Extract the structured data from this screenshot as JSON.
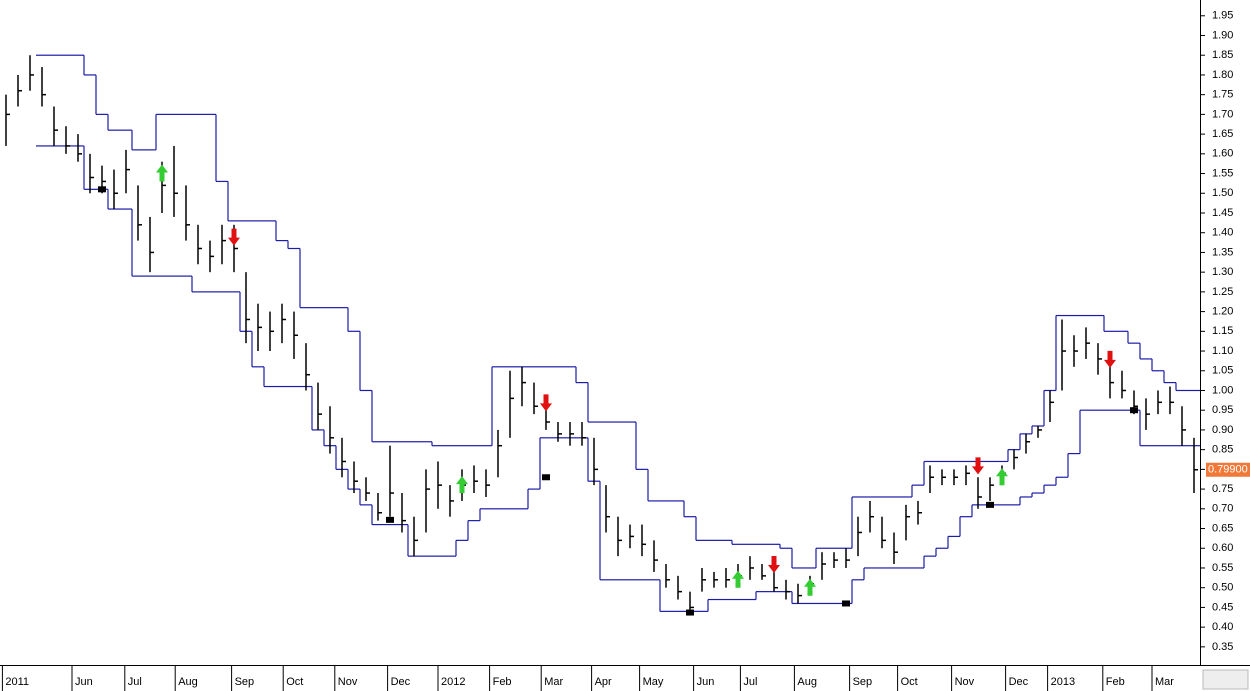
{
  "chart_data": {
    "type": "ohlc",
    "xlim": [
      -0.5,
      99.5
    ],
    "ylim": [
      0.304,
      1.99
    ],
    "xticks": [
      {
        "value": -0.3,
        "label": "2011"
      },
      {
        "value": 5.5,
        "label": "Jun"
      },
      {
        "value": 9.9,
        "label": "Jul"
      },
      {
        "value": 14.1,
        "label": "Aug"
      },
      {
        "value": 18.8,
        "label": "Sep"
      },
      {
        "value": 23.1,
        "label": "Oct"
      },
      {
        "value": 27.4,
        "label": "Nov"
      },
      {
        "value": 31.8,
        "label": "Dec"
      },
      {
        "value": 36.0,
        "label": "2012"
      },
      {
        "value": 40.3,
        "label": "Feb"
      },
      {
        "value": 44.6,
        "label": "Mar"
      },
      {
        "value": 48.8,
        "label": "Apr"
      },
      {
        "value": 52.8,
        "label": "May"
      },
      {
        "value": 57.3,
        "label": "Jun"
      },
      {
        "value": 61.2,
        "label": "Jul"
      },
      {
        "value": 65.7,
        "label": "Aug"
      },
      {
        "value": 70.3,
        "label": "Sep"
      },
      {
        "value": 74.3,
        "label": "Oct"
      },
      {
        "value": 78.8,
        "label": "Nov"
      },
      {
        "value": 83.3,
        "label": "Dec"
      },
      {
        "value": 86.8,
        "label": "2013"
      },
      {
        "value": 91.4,
        "label": "Feb"
      },
      {
        "value": 95.5,
        "label": "Mar"
      }
    ],
    "yticks": [
      {
        "value": 0.35,
        "label": "0.35"
      },
      {
        "value": 0.4,
        "label": "0.40"
      },
      {
        "value": 0.45,
        "label": "0.45"
      },
      {
        "value": 0.5,
        "label": "0.50"
      },
      {
        "value": 0.55,
        "label": "0.55"
      },
      {
        "value": 0.6,
        "label": "0.60"
      },
      {
        "value": 0.65,
        "label": "0.65"
      },
      {
        "value": 0.7,
        "label": "0.70"
      },
      {
        "value": 0.75,
        "label": "0.75"
      },
      {
        "value": 0.8,
        "label": "0.80"
      },
      {
        "value": 0.85,
        "label": "0.85"
      },
      {
        "value": 0.9,
        "label": "0.90"
      },
      {
        "value": 0.95,
        "label": "0.95"
      },
      {
        "value": 1.0,
        "label": "1.00"
      },
      {
        "value": 1.05,
        "label": "1.05"
      },
      {
        "value": 1.1,
        "label": "1.10"
      },
      {
        "value": 1.15,
        "label": "1.15"
      },
      {
        "value": 1.2,
        "label": "1.20"
      },
      {
        "value": 1.25,
        "label": "1.25"
      },
      {
        "value": 1.3,
        "label": "1.30"
      },
      {
        "value": 1.35,
        "label": "1.35"
      },
      {
        "value": 1.4,
        "label": "1.40"
      },
      {
        "value": 1.45,
        "label": "1.45"
      },
      {
        "value": 1.5,
        "label": "1.50"
      },
      {
        "value": 1.55,
        "label": "1.55"
      },
      {
        "value": 1.6,
        "label": "1.60"
      },
      {
        "value": 1.65,
        "label": "1.65"
      },
      {
        "value": 1.7,
        "label": "1.70"
      },
      {
        "value": 1.75,
        "label": "1.75"
      },
      {
        "value": 1.8,
        "label": "1.80"
      },
      {
        "value": 1.85,
        "label": "1.85"
      },
      {
        "value": 1.9,
        "label": "1.90"
      },
      {
        "value": 1.95,
        "label": "1.95"
      }
    ],
    "bar_color": "#000000",
    "high": [
      1.75,
      1.8,
      1.85,
      1.82,
      1.72,
      1.67,
      1.65,
      1.6,
      1.57,
      1.56,
      1.61,
      1.52,
      1.44,
      1.58,
      1.62,
      1.52,
      1.42,
      1.38,
      1.42,
      1.42,
      1.3,
      1.22,
      1.2,
      1.22,
      1.2,
      1.12,
      1.02,
      0.96,
      0.88,
      0.82,
      0.78,
      0.74,
      0.86,
      0.74,
      0.68,
      0.8,
      0.82,
      0.76,
      0.8,
      0.81,
      0.8,
      0.9,
      1.05,
      1.06,
      1.02,
      0.97,
      0.92,
      0.92,
      0.92,
      0.88,
      0.76,
      0.68,
      0.66,
      0.66,
      0.62,
      0.56,
      0.53,
      0.49,
      0.55,
      0.54,
      0.55,
      0.56,
      0.58,
      0.56,
      0.54,
      0.52,
      0.51,
      0.53,
      0.59,
      0.59,
      0.6,
      0.68,
      0.72,
      0.68,
      0.64,
      0.71,
      0.72,
      0.81,
      0.8,
      0.8,
      0.81,
      0.78,
      0.78,
      0.81,
      0.85,
      0.89,
      0.91,
      1.0,
      1.18,
      1.14,
      1.16,
      1.12,
      1.06,
      1.05,
      1.0,
      0.98,
      1.0,
      1.01,
      0.96,
      0.88
    ],
    "low": [
      1.62,
      1.72,
      1.76,
      1.72,
      1.62,
      1.6,
      1.58,
      1.5,
      1.5,
      1.46,
      1.5,
      1.38,
      1.3,
      1.45,
      1.44,
      1.38,
      1.32,
      1.3,
      1.32,
      1.3,
      1.12,
      1.1,
      1.1,
      1.12,
      1.08,
      1.0,
      0.9,
      0.84,
      0.78,
      0.74,
      0.72,
      0.67,
      0.68,
      0.64,
      0.58,
      0.64,
      0.7,
      0.68,
      0.72,
      0.74,
      0.73,
      0.78,
      0.88,
      0.96,
      0.94,
      0.9,
      0.87,
      0.86,
      0.86,
      0.76,
      0.64,
      0.58,
      0.6,
      0.58,
      0.54,
      0.5,
      0.47,
      0.43,
      0.49,
      0.5,
      0.5,
      0.51,
      0.52,
      0.52,
      0.49,
      0.47,
      0.46,
      0.48,
      0.52,
      0.55,
      0.55,
      0.58,
      0.64,
      0.6,
      0.56,
      0.62,
      0.66,
      0.74,
      0.76,
      0.76,
      0.76,
      0.7,
      0.72,
      0.76,
      0.8,
      0.84,
      0.88,
      0.92,
      1.0,
      1.06,
      1.08,
      1.04,
      0.98,
      0.98,
      0.94,
      0.9,
      0.94,
      0.94,
      0.86,
      0.74
    ],
    "close": [
      1.7,
      1.76,
      1.8,
      1.75,
      1.66,
      1.62,
      1.6,
      1.54,
      1.53,
      1.5,
      1.56,
      1.42,
      1.35,
      1.52,
      1.5,
      1.42,
      1.36,
      1.34,
      1.38,
      1.36,
      1.18,
      1.16,
      1.15,
      1.18,
      1.14,
      1.04,
      0.94,
      0.88,
      0.82,
      0.77,
      0.74,
      0.69,
      0.74,
      0.67,
      0.62,
      0.75,
      0.76,
      0.72,
      0.76,
      0.77,
      0.76,
      0.86,
      0.98,
      1.02,
      0.96,
      0.92,
      0.89,
      0.89,
      0.88,
      0.8,
      0.68,
      0.62,
      0.63,
      0.61,
      0.57,
      0.52,
      0.49,
      0.45,
      0.52,
      0.52,
      0.52,
      0.53,
      0.55,
      0.53,
      0.5,
      0.49,
      0.48,
      0.51,
      0.56,
      0.57,
      0.57,
      0.64,
      0.68,
      0.62,
      0.59,
      0.68,
      0.69,
      0.78,
      0.78,
      0.78,
      0.79,
      0.73,
      0.76,
      0.79,
      0.83,
      0.87,
      0.9,
      0.97,
      1.1,
      1.1,
      1.12,
      1.08,
      1.02,
      1.0,
      0.96,
      0.94,
      0.97,
      0.97,
      0.9,
      0.799
    ],
    "band_color": "#1c1ca8",
    "upper": [
      null,
      null,
      null,
      1.85,
      1.85,
      1.85,
      1.85,
      1.8,
      1.7,
      1.66,
      1.66,
      1.61,
      1.61,
      1.7,
      1.7,
      1.7,
      1.7,
      1.7,
      1.53,
      1.43,
      1.43,
      1.43,
      1.43,
      1.38,
      1.36,
      1.21,
      1.21,
      1.21,
      1.21,
      1.15,
      1.0,
      0.87,
      0.87,
      0.87,
      0.87,
      0.87,
      0.86,
      0.86,
      0.86,
      0.86,
      0.86,
      1.06,
      1.06,
      1.06,
      1.06,
      1.06,
      1.06,
      1.06,
      1.02,
      0.92,
      0.92,
      0.92,
      0.92,
      0.8,
      0.72,
      0.72,
      0.72,
      0.68,
      0.62,
      0.62,
      0.62,
      0.61,
      0.61,
      0.61,
      0.61,
      0.6,
      0.55,
      0.55,
      0.6,
      0.6,
      0.6,
      0.73,
      0.73,
      0.73,
      0.73,
      0.73,
      0.76,
      0.82,
      0.82,
      0.82,
      0.82,
      0.82,
      0.82,
      0.82,
      0.85,
      0.89,
      0.91,
      1.0,
      1.19,
      1.19,
      1.19,
      1.19,
      1.15,
      1.15,
      1.12,
      1.08,
      1.05,
      1.02,
      1.0,
      1.0
    ],
    "lower": [
      null,
      null,
      null,
      1.62,
      1.62,
      1.62,
      1.62,
      1.51,
      1.51,
      1.46,
      1.46,
      1.29,
      1.29,
      1.29,
      1.29,
      1.29,
      1.25,
      1.25,
      1.25,
      1.25,
      1.15,
      1.06,
      1.01,
      1.01,
      1.01,
      1.01,
      0.9,
      0.86,
      0.8,
      0.75,
      0.71,
      0.66,
      0.66,
      0.66,
      0.58,
      0.58,
      0.58,
      0.58,
      0.62,
      0.67,
      0.7,
      0.7,
      0.7,
      0.7,
      0.75,
      0.88,
      0.88,
      0.88,
      0.88,
      0.77,
      0.52,
      0.52,
      0.52,
      0.52,
      0.52,
      0.44,
      0.44,
      0.44,
      0.44,
      0.47,
      0.47,
      0.47,
      0.47,
      0.49,
      0.49,
      0.49,
      0.46,
      0.46,
      0.46,
      0.46,
      0.46,
      0.52,
      0.55,
      0.55,
      0.55,
      0.55,
      0.55,
      0.58,
      0.6,
      0.63,
      0.68,
      0.71,
      0.71,
      0.71,
      0.71,
      0.73,
      0.74,
      0.76,
      0.78,
      0.84,
      0.95,
      0.95,
      0.95,
      0.95,
      0.95,
      0.86,
      0.86,
      0.86,
      0.86,
      0.86
    ],
    "buy": {
      "color": "#33cc33",
      "x": [
        13,
        38,
        61,
        67,
        83
      ],
      "values": [
        1.55,
        0.76,
        0.52,
        0.5,
        0.78
      ]
    },
    "sell": {
      "color": "#e01010",
      "x": [
        19,
        45,
        64,
        81,
        92
      ],
      "values": [
        1.39,
        0.97,
        0.56,
        0.81,
        1.08
      ]
    },
    "markers": {
      "x": [
        8,
        32,
        45,
        57,
        70,
        82,
        94
      ],
      "values": [
        1.51,
        0.672,
        0.78,
        0.437,
        0.46,
        0.71,
        0.95
      ]
    },
    "last_price": 0.799,
    "last_price_label": "0.79900",
    "last_price_color": "#f07838"
  }
}
